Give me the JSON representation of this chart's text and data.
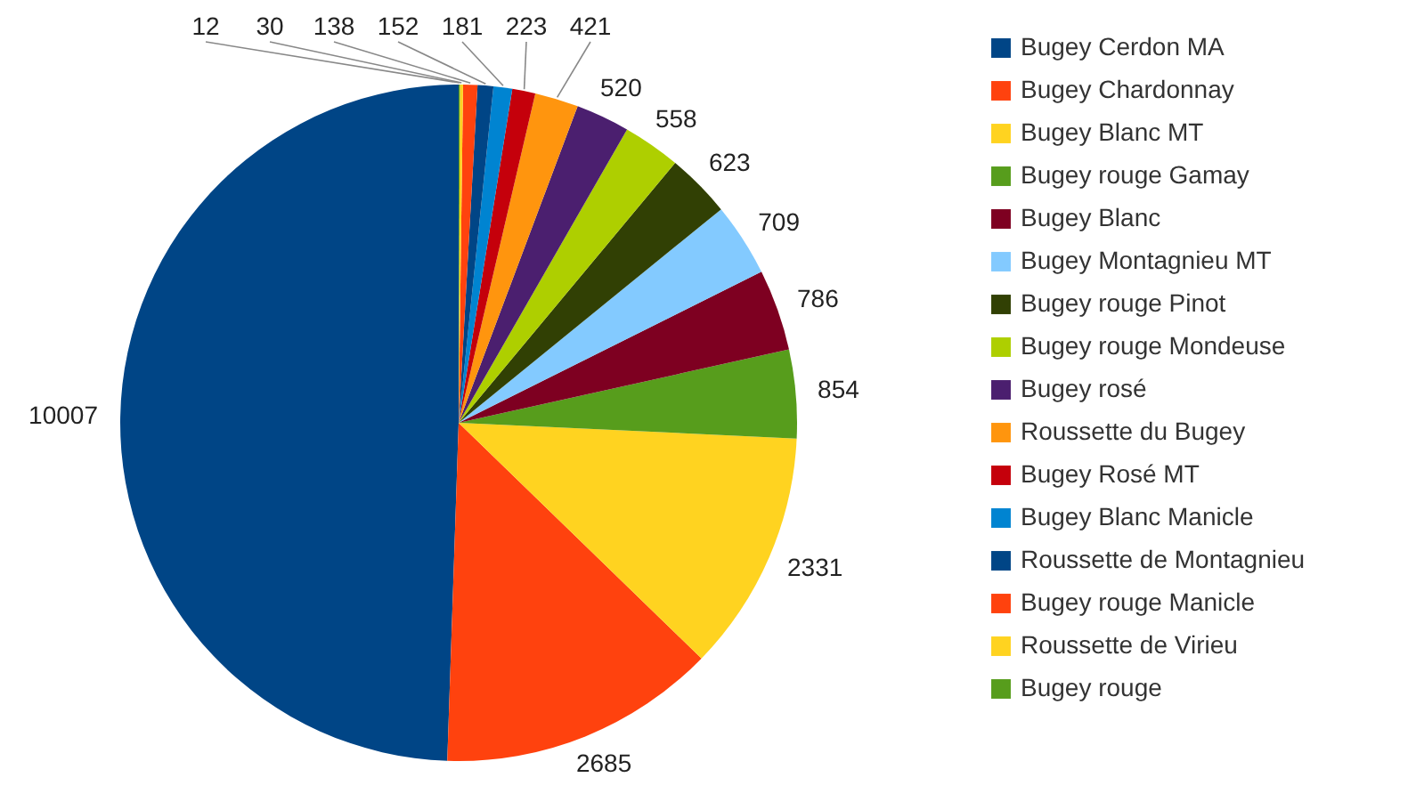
{
  "chart_data": {
    "type": "pie",
    "categories": [
      "Bugey Cerdon MA",
      "Bugey Chardonnay",
      "Bugey Blanc MT",
      "Bugey rouge Gamay",
      "Bugey Blanc",
      "Bugey Montagnieu MT",
      "Bugey rouge Pinot",
      "Bugey rouge Mondeuse",
      "Bugey rosé",
      "Roussette du Bugey",
      "Bugey Rosé MT",
      "Bugey Blanc Manicle",
      "Roussette de Montagnieu",
      "Bugey rouge Manicle",
      "Roussette de Virieu",
      "Bugey rouge"
    ],
    "values": [
      10007,
      2685,
      2331,
      854,
      786,
      709,
      623,
      558,
      520,
      421,
      223,
      181,
      152,
      138,
      30,
      12
    ],
    "colors": [
      "#004586",
      "#ff420e",
      "#ffd320",
      "#579d1c",
      "#7e0021",
      "#83caff",
      "#314004",
      "#aecf00",
      "#4b1f6f",
      "#ff950e",
      "#c5000b",
      "#0084d1",
      "#004586",
      "#ff420e",
      "#ffd320",
      "#579d1c"
    ],
    "data_labels": true,
    "legend": "right"
  }
}
